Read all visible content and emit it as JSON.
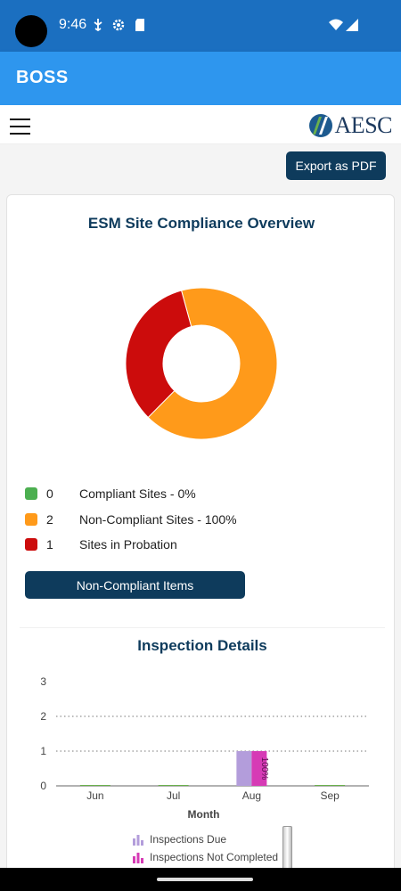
{
  "status_bar": {
    "time": "9:46",
    "icons": [
      "usb-debug-icon",
      "settings-icon",
      "sd-card-icon",
      "wifi-icon",
      "signal-icon"
    ]
  },
  "app_bar": {
    "title": "BOSS"
  },
  "header": {
    "logo_text": "AESC"
  },
  "toolbar": {
    "export_label": "Export as PDF"
  },
  "compliance": {
    "title": "ESM Site Compliance Overview",
    "legend": [
      {
        "count": "0",
        "label": "Compliant Sites - 0%",
        "color": "#4caf50"
      },
      {
        "count": "2",
        "label": "Non-Compliant Sites - 100%",
        "color": "#ff9a1a"
      },
      {
        "count": "1",
        "label": "Sites in Probation",
        "color": "#cc0c0c"
      }
    ],
    "button_label": "Non-Compliant Items"
  },
  "inspection": {
    "title": "Inspection Details",
    "legend": [
      {
        "label": "Inspections Due",
        "color": "#b39ddb"
      },
      {
        "label": "Inspections Not Completed",
        "color": "#d63bb5"
      }
    ]
  },
  "chart_data": [
    {
      "type": "pie",
      "donut": true,
      "categories": [
        "Non-Compliant Sites",
        "Sites in Probation"
      ],
      "values": [
        2,
        1
      ],
      "colors": [
        "#ff9a1a",
        "#cc0c0c"
      ]
    },
    {
      "type": "bar",
      "categories": [
        "Jun",
        "Jul",
        "Aug",
        "Sep"
      ],
      "xlabel": "Month",
      "ylim": [
        0,
        3
      ],
      "yticks": [
        "0",
        "1",
        "2",
        "3"
      ],
      "series": [
        {
          "name": "Inspections Due",
          "values": [
            0,
            0,
            1,
            0
          ],
          "color": "#b39ddb"
        },
        {
          "name": "Inspections Not Completed",
          "values": [
            0,
            0,
            1,
            0
          ],
          "color": "#d63bb5",
          "data_labels": [
            "",
            "",
            "100%",
            ""
          ]
        }
      ]
    }
  ]
}
